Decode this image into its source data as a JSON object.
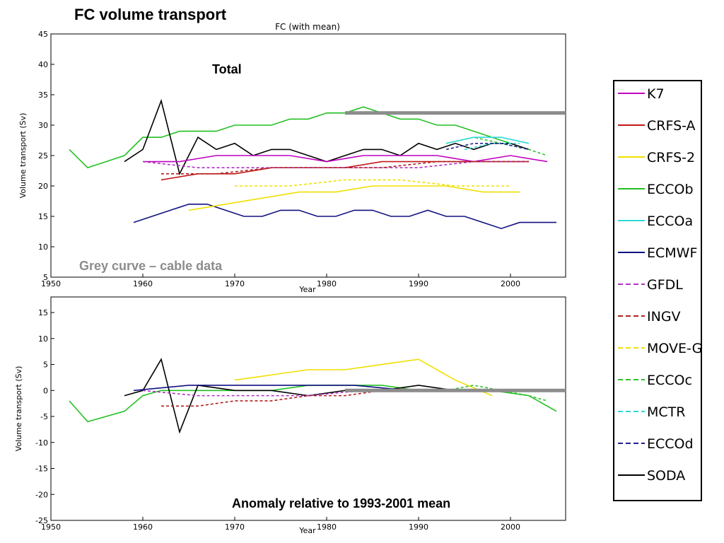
{
  "page_title": "FC volume transport",
  "colors": {
    "K7": "#c000c0",
    "CRFS-A": "#c01818",
    "CRFS-2": "#f0e000",
    "ECCOb": "#22c022",
    "ECCOa": "#30d8d8",
    "ECMWF": "#101080",
    "GFDL": "#b030c0",
    "INGV": "#b02020",
    "MOVE-G": "#f0e000",
    "ECCOc": "#30c030",
    "MCTR": "#30d8d8",
    "ECCOd": "#202090",
    "SODA": "#000000",
    "cable": "#8c8c8c"
  },
  "chart_data": [
    {
      "type": "line",
      "title": "FC (with mean)",
      "panel_label": "Total",
      "annotation": "Grey curve – cable data",
      "xlabel": "Year",
      "ylabel": "Volume transport (Sv)",
      "xlim": [
        1950,
        2006
      ],
      "ylim": [
        5,
        45
      ],
      "xticks": [
        1950,
        1960,
        1970,
        1980,
        1990,
        2000
      ],
      "yticks": [
        5,
        10,
        15,
        20,
        25,
        30,
        35,
        40,
        45
      ],
      "series": [
        {
          "name": "ECCOb",
          "x": [
            1952,
            1954,
            1956,
            1958,
            1960,
            1962,
            1964,
            1966,
            1968,
            1970,
            1972,
            1974,
            1976,
            1978,
            1980,
            1982,
            1984,
            1986,
            1988,
            1990,
            1992,
            1994,
            1996,
            1998,
            2000
          ],
          "y": [
            26,
            23,
            24,
            25,
            28,
            28,
            29,
            29,
            29,
            30,
            30,
            30,
            31,
            31,
            32,
            32,
            33,
            32,
            31,
            31,
            30,
            30,
            29,
            28,
            27
          ]
        },
        {
          "name": "ECMWF",
          "x": [
            1959,
            1961,
            1963,
            1965,
            1967,
            1969,
            1971,
            1973,
            1975,
            1977,
            1979,
            1981,
            1983,
            1985,
            1987,
            1989,
            1991,
            1993,
            1995,
            1997,
            1999,
            2001,
            2003,
            2005
          ],
          "y": [
            14,
            15,
            16,
            17,
            17,
            16,
            15,
            15,
            16,
            16,
            15,
            15,
            16,
            16,
            15,
            15,
            16,
            15,
            15,
            14,
            13,
            14,
            14,
            14
          ]
        },
        {
          "name": "SODA",
          "x": [
            1958,
            1960,
            1962,
            1964,
            1966,
            1968,
            1970,
            1972,
            1974,
            1976,
            1978,
            1980,
            1982,
            1984,
            1986,
            1988,
            1990,
            1992,
            1994,
            1996,
            1998,
            2000,
            2002
          ],
          "y": [
            24,
            26,
            34,
            22,
            28,
            26,
            27,
            25,
            26,
            26,
            25,
            24,
            25,
            26,
            26,
            25,
            27,
            26,
            27,
            26,
            27,
            27,
            26
          ]
        },
        {
          "name": "K7",
          "x": [
            1960,
            1964,
            1968,
            1972,
            1976,
            1980,
            1984,
            1988,
            1992,
            1996,
            2000,
            2004
          ],
          "y": [
            24,
            24,
            25,
            25,
            25,
            24,
            25,
            25,
            25,
            24,
            25,
            24
          ]
        },
        {
          "name": "CRFS-A",
          "x": [
            1962,
            1966,
            1970,
            1974,
            1978,
            1982,
            1986,
            1990,
            1994,
            1998,
            2002
          ],
          "y": [
            21,
            22,
            22,
            23,
            23,
            23,
            24,
            24,
            24,
            24,
            24
          ]
        },
        {
          "name": "CRFS-2",
          "x": [
            1965,
            1969,
            1973,
            1977,
            1981,
            1985,
            1989,
            1993,
            1997,
            2001
          ],
          "y": [
            16,
            17,
            18,
            19,
            19,
            20,
            20,
            20,
            19,
            19
          ]
        },
        {
          "name": "GFDL",
          "x": [
            1960,
            1966,
            1972,
            1978,
            1984,
            1990,
            1996,
            2002
          ],
          "y": [
            24,
            23,
            23,
            23,
            23,
            23,
            24,
            24
          ]
        },
        {
          "name": "INGV",
          "x": [
            1962,
            1968,
            1974,
            1980,
            1986,
            1992,
            1998,
            2002
          ],
          "y": [
            22,
            22,
            23,
            23,
            23,
            24,
            24,
            24
          ]
        },
        {
          "name": "MOVE-G",
          "x": [
            1970,
            1976,
            1982,
            1988,
            1994,
            2000
          ],
          "y": [
            20,
            20,
            21,
            21,
            20,
            20
          ]
        },
        {
          "name": "ECCOc",
          "x": [
            1993,
            1996,
            1999,
            2002,
            2004
          ],
          "y": [
            27,
            28,
            27,
            26,
            25
          ]
        },
        {
          "name": "ECCOa",
          "x": [
            1993,
            1996,
            1999,
            2002
          ],
          "y": [
            27,
            28,
            28,
            27
          ]
        },
        {
          "name": "MCTR",
          "x": [
            1995,
            1998,
            2001
          ],
          "y": [
            26,
            27,
            27
          ]
        },
        {
          "name": "ECCOd",
          "x": [
            1993,
            1996,
            1999,
            2002
          ],
          "y": [
            26,
            27,
            27,
            26
          ]
        },
        {
          "name": "cable",
          "x": [
            1982,
            1985,
            1988,
            1991,
            1994,
            1997,
            2000,
            2003,
            2006
          ],
          "y": [
            32,
            32,
            32,
            32,
            32,
            32,
            32,
            32,
            32
          ]
        }
      ]
    },
    {
      "type": "line",
      "panel_label": "Anomaly relative to 1993-2001 mean",
      "xlabel": "Year",
      "ylabel": "Volume transport (Sv)",
      "xlim": [
        1950,
        2006
      ],
      "ylim": [
        -25,
        18
      ],
      "xticks": [
        1950,
        1960,
        1970,
        1980,
        1990,
        2000
      ],
      "yticks": [
        -25,
        -20,
        -15,
        -10,
        -5,
        0,
        5,
        10,
        15
      ],
      "series": [
        {
          "name": "ECCOb",
          "x": [
            1952,
            1954,
            1956,
            1958,
            1960,
            1962,
            1966,
            1970,
            1974,
            1978,
            1982,
            1986,
            1990,
            1994,
            1998,
            2002,
            2005
          ],
          "y": [
            -2,
            -6,
            -5,
            -4,
            -1,
            0,
            0,
            0,
            0,
            1,
            1,
            1,
            0,
            0,
            0,
            -1,
            -4
          ]
        },
        {
          "name": "SODA",
          "x": [
            1958,
            1960,
            1962,
            1964,
            1966,
            1970,
            1974,
            1978,
            1982,
            1986,
            1990,
            1994,
            1998,
            2002
          ],
          "y": [
            -1,
            0,
            6,
            -8,
            1,
            0,
            0,
            -1,
            0,
            0,
            1,
            0,
            0,
            0
          ]
        },
        {
          "name": "CRFS-2",
          "x": [
            1970,
            1974,
            1978,
            1982,
            1986,
            1990,
            1994,
            1998
          ],
          "y": [
            2,
            3,
            4,
            4,
            5,
            6,
            2,
            -1
          ]
        },
        {
          "name": "INGV",
          "x": [
            1962,
            1966,
            1970,
            1974,
            1978,
            1982,
            1986,
            1990,
            1994,
            1998,
            2002
          ],
          "y": [
            -3,
            -3,
            -2,
            -2,
            -1,
            -1,
            0,
            0,
            0,
            0,
            0
          ]
        },
        {
          "name": "GFDL",
          "x": [
            1960,
            1966,
            1972,
            1978,
            1984,
            1990,
            1996,
            2002
          ],
          "y": [
            0,
            -1,
            -1,
            -1,
            0,
            0,
            0,
            0
          ]
        },
        {
          "name": "ECMWF",
          "x": [
            1959,
            1965,
            1971,
            1977,
            1983,
            1989,
            1995,
            2001,
            2005
          ],
          "y": [
            0,
            1,
            1,
            1,
            1,
            0,
            0,
            0,
            0
          ]
        },
        {
          "name": "ECCOc",
          "x": [
            1993,
            1996,
            1999,
            2002,
            2004
          ],
          "y": [
            0,
            1,
            0,
            -1,
            -2
          ]
        },
        {
          "name": "MCTR",
          "x": [
            1995,
            1998,
            2001
          ],
          "y": [
            0,
            0,
            0
          ]
        },
        {
          "name": "cable",
          "x": [
            1982,
            1985,
            1988,
            1991,
            1994,
            1997,
            2000,
            2003,
            2006
          ],
          "y": [
            0,
            0,
            0,
            0,
            0,
            0,
            0,
            0,
            0
          ]
        }
      ]
    }
  ],
  "legend": [
    {
      "label": "K7",
      "style": "solid"
    },
    {
      "label": "CRFS-A",
      "style": "solid"
    },
    {
      "label": "CRFS-2",
      "style": "solid"
    },
    {
      "label": "ECCOb",
      "style": "solid"
    },
    {
      "label": "ECCOa",
      "style": "solid"
    },
    {
      "label": "ECMWF",
      "style": "solid"
    },
    {
      "label": "GFDL",
      "style": "dashed"
    },
    {
      "label": "INGV",
      "style": "dashed"
    },
    {
      "label": "MOVE-G",
      "style": "dashed"
    },
    {
      "label": "ECCOc",
      "style": "dashed"
    },
    {
      "label": "MCTR",
      "style": "dashed"
    },
    {
      "label": "ECCOd",
      "style": "dashed"
    },
    {
      "label": "SODA",
      "style": "solid"
    }
  ]
}
